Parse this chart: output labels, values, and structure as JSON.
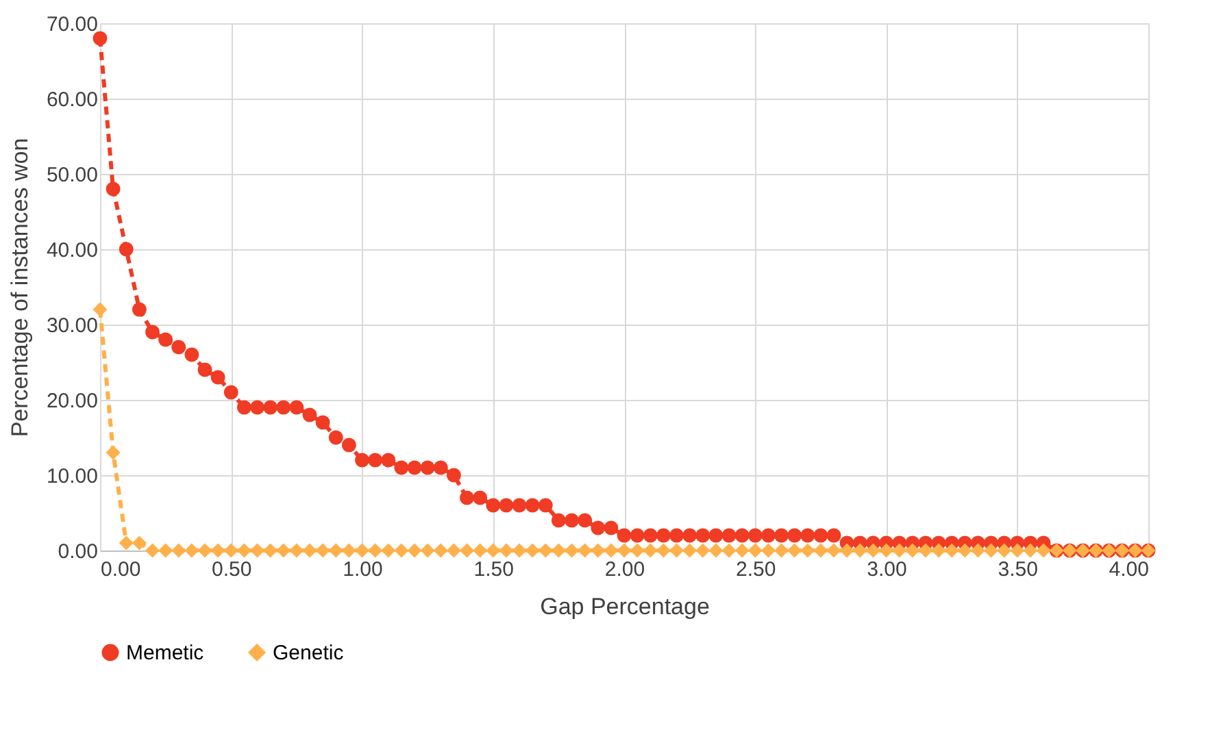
{
  "chart_data": {
    "type": "line",
    "xlabel": "Gap Percentage",
    "ylabel": "Percentage of instances won",
    "x": [
      0,
      0.05,
      0.1,
      0.15,
      0.2,
      0.25,
      0.3,
      0.35,
      0.4,
      0.45,
      0.5,
      0.55,
      0.6,
      0.65,
      0.7,
      0.75,
      0.8,
      0.85,
      0.9,
      0.95,
      1.0,
      1.05,
      1.1,
      1.15,
      1.2,
      1.25,
      1.3,
      1.35,
      1.4,
      1.45,
      1.5,
      1.55,
      1.6,
      1.65,
      1.7,
      1.75,
      1.8,
      1.85,
      1.9,
      1.95,
      2.0,
      2.05,
      2.1,
      2.15,
      2.2,
      2.25,
      2.3,
      2.35,
      2.4,
      2.45,
      2.5,
      2.55,
      2.6,
      2.65,
      2.7,
      2.75,
      2.8,
      2.85,
      2.9,
      2.95,
      3.0,
      3.05,
      3.1,
      3.15,
      3.2,
      3.25,
      3.3,
      3.35,
      3.4,
      3.45,
      3.5,
      3.55,
      3.6,
      3.65,
      3.7,
      3.75,
      3.8,
      3.85,
      3.9,
      3.95,
      4.0
    ],
    "series": [
      {
        "name": "Memetic",
        "color": "#f03c24",
        "marker": "circle",
        "values": [
          68,
          48,
          40,
          32,
          29,
          28,
          27,
          26,
          24,
          23,
          21,
          19,
          19,
          19,
          19,
          19,
          18,
          17,
          15,
          14,
          12,
          12,
          12,
          11,
          11,
          11,
          11,
          10,
          7,
          7,
          6,
          6,
          6,
          6,
          6,
          4,
          4,
          4,
          3,
          3,
          2,
          2,
          2,
          2,
          2,
          2,
          2,
          2,
          2,
          2,
          2,
          2,
          2,
          2,
          2,
          2,
          2,
          1,
          1,
          1,
          1,
          1,
          1,
          1,
          1,
          1,
          1,
          1,
          1,
          1,
          1,
          1,
          1,
          0,
          0,
          0,
          0,
          0,
          0,
          0,
          0
        ]
      },
      {
        "name": "Genetic",
        "color": "#ffb04a",
        "marker": "diamond",
        "values": [
          32,
          13,
          1,
          1,
          0,
          0,
          0,
          0,
          0,
          0,
          0,
          0,
          0,
          0,
          0,
          0,
          0,
          0,
          0,
          0,
          0,
          0,
          0,
          0,
          0,
          0,
          0,
          0,
          0,
          0,
          0,
          0,
          0,
          0,
          0,
          0,
          0,
          0,
          0,
          0,
          0,
          0,
          0,
          0,
          0,
          0,
          0,
          0,
          0,
          0,
          0,
          0,
          0,
          0,
          0,
          0,
          0,
          0,
          0,
          0,
          0,
          0,
          0,
          0,
          0,
          0,
          0,
          0,
          0,
          0,
          0,
          0,
          0,
          0,
          0,
          0,
          0,
          0,
          0,
          0,
          0
        ]
      }
    ],
    "xlim": [
      0,
      4
    ],
    "xticks": [
      {
        "value": 0,
        "label": "0.00"
      },
      {
        "value": 0.5,
        "label": "0.50"
      },
      {
        "value": 1,
        "label": "1.00"
      },
      {
        "value": 1.5,
        "label": "1.50"
      },
      {
        "value": 2,
        "label": "2.00"
      },
      {
        "value": 2.5,
        "label": "2.50"
      },
      {
        "value": 3,
        "label": "3.00"
      },
      {
        "value": 3.5,
        "label": "3.50"
      },
      {
        "value": 4,
        "label": "4.00"
      }
    ],
    "ylim": [
      0,
      70
    ],
    "yticks": [
      {
        "value": 0,
        "label": "0.00"
      },
      {
        "value": 10,
        "label": "10.00"
      },
      {
        "value": 20,
        "label": "20.00"
      },
      {
        "value": 30,
        "label": "30.00"
      },
      {
        "value": 40,
        "label": "40.00"
      },
      {
        "value": 50,
        "label": "50.00"
      },
      {
        "value": 60,
        "label": "60.00"
      },
      {
        "value": 70,
        "label": "70.00"
      }
    ],
    "grid": true,
    "legend": "bottom",
    "line_style": "dashed"
  }
}
